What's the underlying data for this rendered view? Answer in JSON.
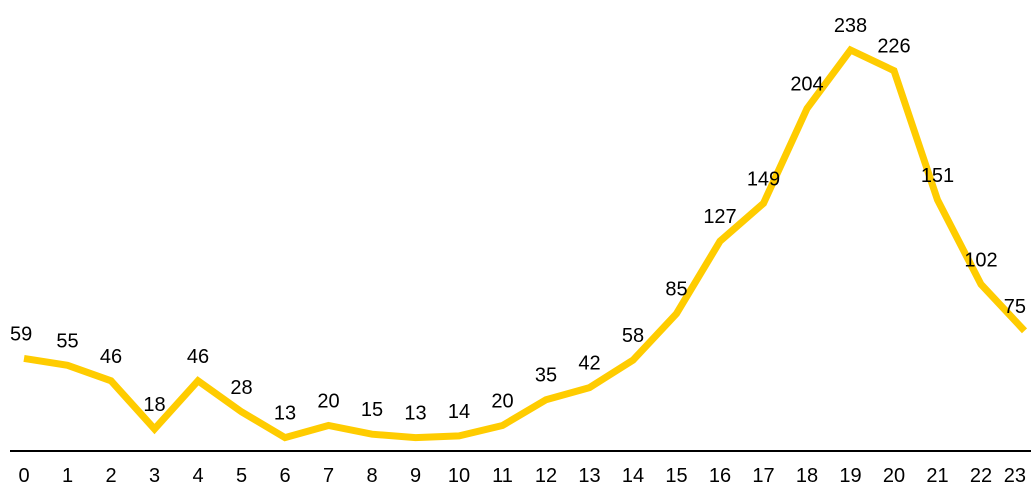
{
  "chart_data": {
    "type": "line",
    "title": "",
    "xlabel": "",
    "ylabel": "",
    "x": [
      "0",
      "1",
      "2",
      "3",
      "4",
      "5",
      "6",
      "7",
      "8",
      "9",
      "10",
      "11",
      "12",
      "13",
      "14",
      "15",
      "16",
      "17",
      "18",
      "19",
      "20",
      "21",
      "22",
      "23"
    ],
    "series": [
      {
        "values": [
          59,
          55,
          46,
          18,
          46,
          28,
          13,
          20,
          15,
          13,
          14,
          20,
          35,
          42,
          58,
          85,
          127,
          149,
          204,
          238,
          226,
          151,
          102,
          75
        ],
        "color": "#FFCC00"
      }
    ],
    "ylim": [
      0,
      250
    ],
    "grid": false,
    "legend": "none",
    "axis_color": "#000000"
  }
}
